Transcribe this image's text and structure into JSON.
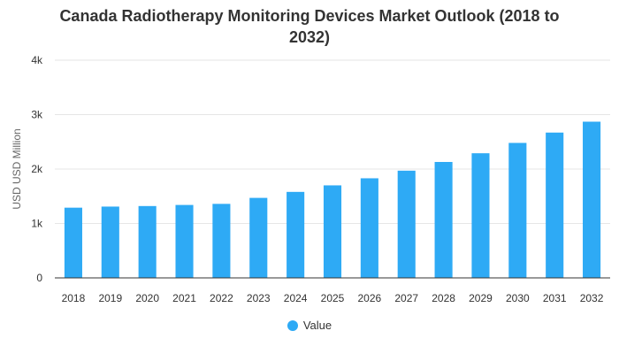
{
  "chart_data": {
    "type": "bar",
    "title_line1": "Canada Radiotherapy Monitoring Devices Market Outlook (2018 to",
    "title_line2": "2032)",
    "xlabel": "",
    "ylabel": "USD USD Million",
    "categories": [
      "2018",
      "2019",
      "2020",
      "2021",
      "2022",
      "2023",
      "2024",
      "2025",
      "2026",
      "2027",
      "2028",
      "2029",
      "2030",
      "2031",
      "2032"
    ],
    "series": [
      {
        "name": "Value",
        "values": [
          1290,
          1310,
          1320,
          1340,
          1360,
          1470,
          1580,
          1700,
          1830,
          1970,
          2130,
          2290,
          2480,
          2670,
          2870
        ]
      }
    ],
    "ylim": [
      0,
      4000
    ],
    "yticks": [
      0,
      1000,
      2000,
      3000,
      4000
    ],
    "ytick_labels": [
      "0",
      "1k",
      "2k",
      "3k",
      "4k"
    ],
    "grid": true,
    "legend_position": "bottom-center",
    "bar_color": "#2EAAF5",
    "grid_color": "#e6e6e6",
    "axis_color": "#333333"
  }
}
